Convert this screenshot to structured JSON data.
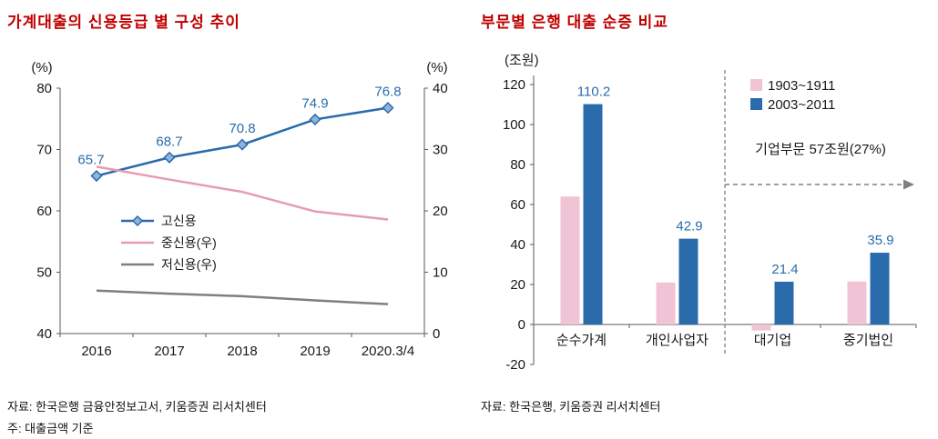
{
  "page": {
    "background": "#ffffff"
  },
  "colors": {
    "title": "#c00000",
    "axis": "#595959",
    "text": "#1a1a1a",
    "blue": "#2a6bac",
    "pink_line": "#e79ab5",
    "pink_bar": "#f0c4d4",
    "gray_line": "#7f7f7f",
    "annotation_line": "#808080"
  },
  "chart_data": [
    {
      "type": "line",
      "title": "가계대출의 신용등급 별 구성 추이",
      "source": "자료: 한국은행 금융안정보고서, 키움증권 리서치센터",
      "note": "주: 대출금액 기준",
      "categories": [
        "2016",
        "2017",
        "2018",
        "2019",
        "2020.3/4"
      ],
      "y_left": {
        "unit": "(%)",
        "min": 40,
        "max": 80,
        "ticks": [
          40,
          50,
          60,
          70,
          80
        ]
      },
      "y_right": {
        "unit": "(%)",
        "min": 0,
        "max": 40,
        "ticks": [
          0,
          10,
          20,
          30,
          40
        ]
      },
      "grid": false,
      "legend_position": "inside-left",
      "series": [
        {
          "name": "고신용",
          "key": "high-credit",
          "axis": "left",
          "color": "#2a6bac",
          "marker": "diamond",
          "marker_fill": "#8fb4d9",
          "show_labels": true,
          "values": [
            65.7,
            68.7,
            70.8,
            74.9,
            76.8
          ]
        },
        {
          "name": "중신용(우)",
          "key": "mid-credit",
          "axis": "right",
          "color": "#e79ab5",
          "show_labels": false,
          "values": [
            27.2,
            25.1,
            23.1,
            19.9,
            18.6
          ]
        },
        {
          "name": "저신용(우)",
          "key": "low-credit",
          "axis": "right",
          "color": "#7f7f7f",
          "show_labels": false,
          "values": [
            7.0,
            6.5,
            6.1,
            5.4,
            4.8
          ]
        }
      ]
    },
    {
      "type": "bar",
      "title": "부문별 은행 대출 순증 비교",
      "source": "자료: 한국은행, 키움증권 리서치센터",
      "categories": [
        "순수가계",
        "개인사업자",
        "대기업",
        "중기법인"
      ],
      "y": {
        "unit": "(조원)",
        "min": -20,
        "max": 120,
        "ticks": [
          -20,
          0,
          20,
          40,
          60,
          80,
          100,
          120
        ]
      },
      "grid": false,
      "legend_position": "top-right",
      "series": [
        {
          "name": "1903~1911",
          "key": "flow-2019",
          "color": "#f0c4d4",
          "show_labels": false,
          "values": [
            64,
            21,
            -3,
            21.5
          ]
        },
        {
          "name": "2003~2011",
          "key": "flow-2020",
          "color": "#2a6bac",
          "show_labels": true,
          "values": [
            110.2,
            42.9,
            21.4,
            35.9
          ]
        }
      ],
      "annotation": {
        "text": "기업부문  57조원(27%)",
        "divider_after_index": 1,
        "arrow_y": 70
      }
    }
  ]
}
